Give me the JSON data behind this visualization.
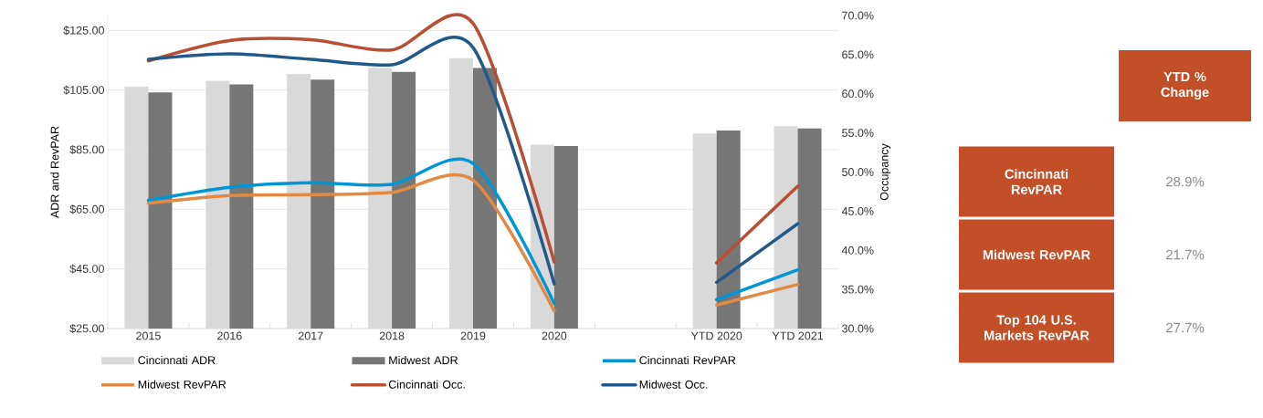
{
  "chart_data": {
    "type": "bar",
    "ylabel": "ADR and RevPAR",
    "y2label": "Occupancy",
    "categories": [
      "2015",
      "2016",
      "2017",
      "2018",
      "2019",
      "2020",
      null,
      "YTD 2020",
      "YTD 2021"
    ],
    "series": [
      {
        "name": "Cincinnati ADR",
        "color": "#d9d9d9",
        "values": [
          106.1,
          108.1,
          110.3,
          112.5,
          115.7,
          86.7,
          null,
          90.4,
          92.9
        ]
      },
      {
        "name": "Midwest ADR",
        "color": "#767676",
        "values": [
          104.2,
          106.9,
          108.5,
          111.1,
          112.4,
          86.2,
          null,
          91.4,
          92.1
        ]
      },
      {
        "name": "Cincinnati RevPAR",
        "type": "line",
        "color": "#0096d6",
        "values": [
          68.0,
          72.4,
          73.9,
          73.4,
          80.4,
          33.4,
          null,
          34.7,
          44.7
        ]
      },
      {
        "name": "Midwest RevPAR",
        "type": "line",
        "color": "#e08a43",
        "values": [
          67.0,
          69.6,
          69.9,
          70.7,
          74.8,
          30.9,
          null,
          32.9,
          39.8
        ]
      },
      {
        "name": "Cincinnati Occ.",
        "type": "line",
        "axis": "y2",
        "color": "#b84f33",
        "values": [
          64.2,
          66.8,
          66.9,
          65.6,
          69.0,
          38.5,
          null,
          38.4,
          48.2
        ]
      },
      {
        "name": "Midwest Occ.",
        "type": "line",
        "axis": "y2",
        "color": "#215a8a",
        "values": [
          64.4,
          65.1,
          64.4,
          63.7,
          65.9,
          35.7,
          null,
          35.9,
          43.4
        ]
      }
    ],
    "ylim": [
      25,
      130
    ],
    "yticks": [
      {
        "value": 25,
        "label": "$25.00"
      },
      {
        "value": 45,
        "label": "$45.00"
      },
      {
        "value": 65,
        "label": "$65.00"
      },
      {
        "value": 85,
        "label": "$85.00"
      },
      {
        "value": 105,
        "label": "$105.00"
      },
      {
        "value": 125,
        "label": "$125.00"
      }
    ],
    "y2lim": [
      30,
      70
    ],
    "y2ticks": [
      {
        "value": 30,
        "label": "30.0%"
      },
      {
        "value": 35,
        "label": "35.0%"
      },
      {
        "value": 40,
        "label": "40.0%"
      },
      {
        "value": 45,
        "label": "45.0%"
      },
      {
        "value": 50,
        "label": "50.0%"
      },
      {
        "value": 55,
        "label": "55.0%"
      },
      {
        "value": 60,
        "label": "60.0%"
      },
      {
        "value": 65,
        "label": "65.0%"
      },
      {
        "value": 70,
        "label": "70.0%"
      }
    ],
    "grid": "y",
    "legend": "bottom",
    "annotations": [
      "YTD % Change",
      "Cincinnati RevPAR",
      "28.9%",
      "Midwest RevPAR",
      "21.7%",
      "Top 104 U.S. Markets RevPAR",
      "27.7%"
    ]
  }
}
